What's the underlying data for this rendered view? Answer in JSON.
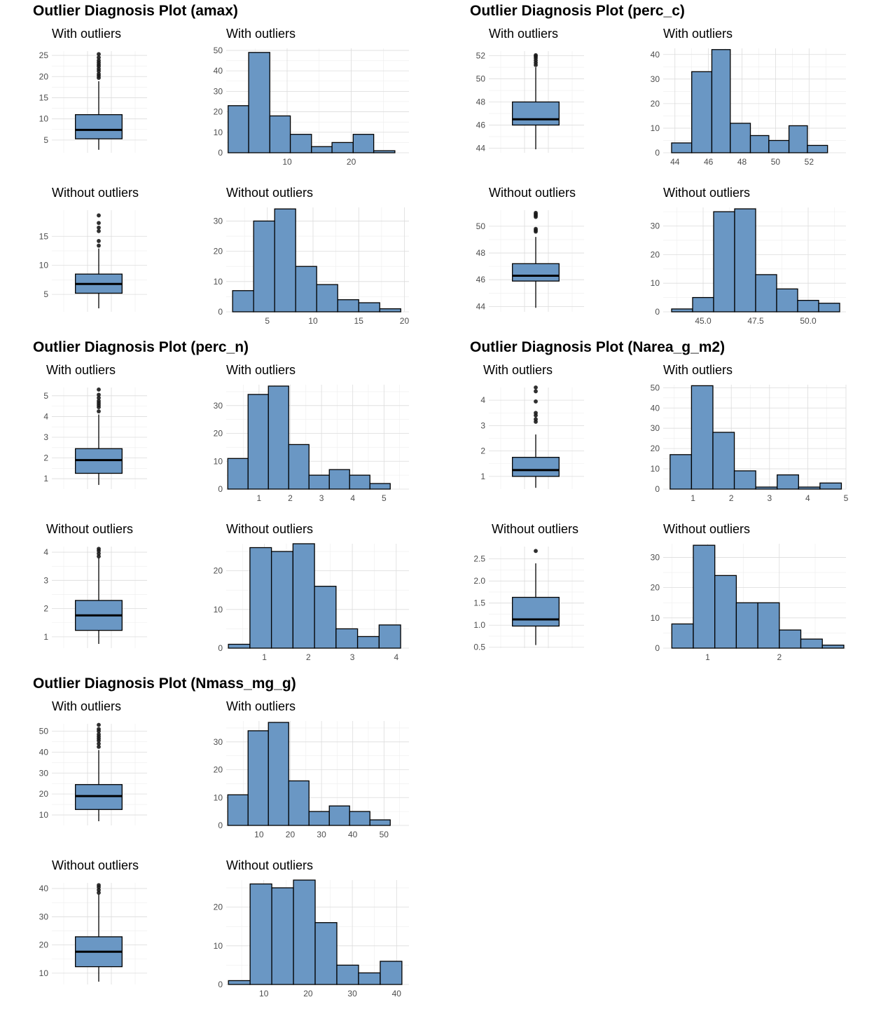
{
  "colors": {
    "fill": "#6a97c4",
    "outline": "#000000",
    "point": "#1a1a1a",
    "grid": "#dcdcdc"
  },
  "chart_data": [
    {
      "type": "composite",
      "title": "Outlier Diagnosis Plot (amax)",
      "panels": [
        {
          "kind": "box",
          "title": "With outliers",
          "ylim": [
            2,
            26
          ],
          "yticks": [
            5,
            10,
            15,
            20,
            25
          ],
          "stats": {
            "whisker_low": 2.7,
            "q1": 5.3,
            "median": 7.4,
            "q3": 11.0,
            "whisker_high": 18.9
          },
          "outliers": [
            19.7,
            20.2,
            20.6,
            21.3,
            21.8,
            22.4,
            22.8,
            23.3,
            23.8,
            24.5,
            25.3
          ]
        },
        {
          "kind": "hist",
          "title": "With outliers",
          "xlim": [
            0.5,
            29
          ],
          "ylim": [
            0,
            51
          ],
          "xticks": [
            10,
            20
          ],
          "yticks": [
            0,
            10,
            20,
            30,
            40,
            50
          ],
          "bins": [
            [
              0.8,
              4.0,
              23
            ],
            [
              4.0,
              7.3,
              49
            ],
            [
              7.3,
              10.5,
              18
            ],
            [
              10.5,
              13.8,
              9
            ],
            [
              13.8,
              17.0,
              3
            ],
            [
              17.0,
              20.3,
              5
            ],
            [
              20.3,
              23.5,
              9
            ],
            [
              23.5,
              26.8,
              1
            ]
          ]
        },
        {
          "kind": "box",
          "title": "Without outliers",
          "ylim": [
            2,
            19.5
          ],
          "yticks": [
            5,
            10,
            15
          ],
          "stats": {
            "whisker_low": 2.6,
            "q1": 5.2,
            "median": 6.8,
            "q3": 8.5,
            "whisker_high": 12.9
          },
          "outliers": [
            13.4,
            14.2,
            15.9,
            16.5,
            17.3,
            18.6
          ]
        },
        {
          "kind": "hist",
          "title": "Without outliers",
          "xlim": [
            0.5,
            20.5
          ],
          "ylim": [
            0,
            34.5
          ],
          "xticks": [
            5,
            10,
            15,
            20
          ],
          "yticks": [
            0,
            10,
            20,
            30
          ],
          "bins": [
            [
              1.2,
              3.5,
              7
            ],
            [
              3.5,
              5.8,
              30
            ],
            [
              5.8,
              8.1,
              34
            ],
            [
              8.1,
              10.4,
              15
            ],
            [
              10.4,
              12.7,
              9
            ],
            [
              12.7,
              15.0,
              4
            ],
            [
              15.0,
              17.3,
              3
            ],
            [
              17.3,
              19.6,
              1
            ]
          ]
        }
      ]
    },
    {
      "type": "composite",
      "title": "Outlier Diagnosis Plot (perc_c)",
      "panels": [
        {
          "kind": "box",
          "title": "With outliers",
          "ylim": [
            43.6,
            52.4
          ],
          "yticks": [
            44,
            46,
            48,
            50,
            52
          ],
          "stats": {
            "whisker_low": 43.9,
            "q1": 46.0,
            "median": 46.5,
            "q3": 48.0,
            "whisker_high": 51.0
          },
          "outliers": [
            51.2,
            51.4,
            51.6,
            51.8,
            51.95,
            52.05
          ]
        },
        {
          "kind": "hist",
          "title": "With outliers",
          "xlim": [
            43.3,
            54.2
          ],
          "ylim": [
            0,
            42.5
          ],
          "xticks": [
            44,
            46,
            48,
            50,
            52
          ],
          "yticks": [
            0,
            10,
            20,
            30,
            40
          ],
          "bins": [
            [
              43.8,
              45.0,
              4
            ],
            [
              45.0,
              46.2,
              33
            ],
            [
              46.2,
              47.3,
              42
            ],
            [
              47.3,
              48.5,
              12
            ],
            [
              48.5,
              49.6,
              7
            ],
            [
              49.6,
              50.8,
              5
            ],
            [
              50.8,
              51.9,
              11
            ],
            [
              51.9,
              53.1,
              3
            ]
          ]
        },
        {
          "kind": "box",
          "title": "Without outliers",
          "ylim": [
            43.6,
            51.2
          ],
          "yticks": [
            44,
            46,
            48,
            50
          ],
          "stats": {
            "whisker_low": 43.9,
            "q1": 45.9,
            "median": 46.3,
            "q3": 47.2,
            "whisker_high": 49.2
          },
          "outliers": [
            49.6,
            49.7,
            49.8,
            50.7,
            50.8,
            50.9,
            51.0
          ]
        },
        {
          "kind": "hist",
          "title": "Without outliers",
          "xlim": [
            43.1,
            51.8
          ],
          "ylim": [
            0,
            36.5
          ],
          "xticks": [
            45.0,
            47.5,
            50.0
          ],
          "yticks": [
            0,
            10,
            20,
            30
          ],
          "bins": [
            [
              43.5,
              44.5,
              1
            ],
            [
              44.5,
              45.5,
              5
            ],
            [
              45.5,
              46.5,
              35
            ],
            [
              46.5,
              47.5,
              36
            ],
            [
              47.5,
              48.5,
              13
            ],
            [
              48.5,
              49.5,
              8
            ],
            [
              49.5,
              50.5,
              4
            ],
            [
              50.5,
              51.5,
              3
            ]
          ]
        }
      ]
    },
    {
      "type": "composite",
      "title": "Outlier Diagnosis Plot (perc_n)",
      "panels": [
        {
          "kind": "box",
          "title": "With outliers",
          "ylim": [
            0.5,
            5.4
          ],
          "yticks": [
            1,
            2,
            3,
            4,
            5
          ],
          "stats": {
            "whisker_low": 0.7,
            "q1": 1.26,
            "median": 1.9,
            "q3": 2.45,
            "whisker_high": 4.1
          },
          "outliers": [
            4.25,
            4.45,
            4.55,
            4.65,
            4.75,
            4.9,
            5.05,
            5.3
          ]
        },
        {
          "kind": "hist",
          "title": "With outliers",
          "xlim": [
            -0.05,
            5.8
          ],
          "ylim": [
            0,
            37.5
          ],
          "xticks": [
            1,
            2,
            3,
            4,
            5
          ],
          "yticks": [
            0,
            10,
            20,
            30
          ],
          "bins": [
            [
              0.0,
              0.65,
              11
            ],
            [
              0.65,
              1.3,
              34
            ],
            [
              1.3,
              1.95,
              37
            ],
            [
              1.95,
              2.6,
              16
            ],
            [
              2.6,
              3.25,
              5
            ],
            [
              3.25,
              3.9,
              7
            ],
            [
              3.9,
              4.55,
              5
            ],
            [
              4.55,
              5.2,
              2
            ]
          ]
        },
        {
          "kind": "box",
          "title": "Without outliers",
          "ylim": [
            0.6,
            4.2
          ],
          "yticks": [
            1,
            2,
            3,
            4
          ],
          "stats": {
            "whisker_low": 0.75,
            "q1": 1.23,
            "median": 1.76,
            "q3": 2.29,
            "whisker_high": 3.8
          },
          "outliers": [
            3.85,
            3.95,
            4.05,
            4.12
          ]
        },
        {
          "kind": "hist",
          "title": "Without outliers",
          "xlim": [
            0.13,
            4.29
          ],
          "ylim": [
            0,
            27
          ],
          "xticks": [
            1,
            2,
            3,
            4
          ],
          "yticks": [
            0,
            10,
            20
          ],
          "bins": [
            [
              0.18,
              0.67,
              1
            ],
            [
              0.67,
              1.16,
              26
            ],
            [
              1.16,
              1.65,
              25
            ],
            [
              1.65,
              2.14,
              27
            ],
            [
              2.14,
              2.63,
              16
            ],
            [
              2.63,
              3.12,
              5
            ],
            [
              3.12,
              3.61,
              3
            ],
            [
              3.61,
              4.1,
              6
            ]
          ]
        }
      ]
    },
    {
      "type": "composite",
      "title": "Outlier Diagnosis Plot (Narea_g_m2)",
      "panels": [
        {
          "kind": "box",
          "title": "With outliers",
          "ylim": [
            0.5,
            4.5
          ],
          "yticks": [
            1,
            2,
            3,
            4
          ],
          "stats": {
            "whisker_low": 0.55,
            "q1": 1.0,
            "median": 1.25,
            "q3": 1.75,
            "whisker_high": 2.65
          },
          "outliers": [
            3.15,
            3.25,
            3.4,
            3.5,
            3.95,
            4.35,
            4.5
          ]
        },
        {
          "kind": "hist",
          "title": "With outliers",
          "xlim": [
            0.22,
            5.0
          ],
          "ylim": [
            0,
            51.5
          ],
          "xticks": [
            1,
            2,
            3,
            4,
            5
          ],
          "yticks": [
            0,
            10,
            20,
            30,
            40,
            50
          ],
          "bins": [
            [
              0.4,
              0.96,
              17
            ],
            [
              0.96,
              1.52,
              51
            ],
            [
              1.52,
              2.08,
              28
            ],
            [
              2.08,
              2.64,
              9
            ],
            [
              2.64,
              3.2,
              1
            ],
            [
              3.2,
              3.76,
              7
            ],
            [
              3.76,
              4.32,
              1
            ],
            [
              4.32,
              4.88,
              3
            ]
          ]
        },
        {
          "kind": "box",
          "title": "Without outliers",
          "ylim": [
            0.48,
            2.78
          ],
          "yticks": [
            0.5,
            1.0,
            1.5,
            2.0,
            2.5
          ],
          "stats": {
            "whisker_low": 0.55,
            "q1": 0.98,
            "median": 1.13,
            "q3": 1.63,
            "whisker_high": 2.4
          },
          "outliers": [
            2.68
          ]
        },
        {
          "kind": "hist",
          "title": "Without outliers",
          "xlim": [
            0.38,
            2.93
          ],
          "ylim": [
            0,
            34.5
          ],
          "xticks": [
            1,
            2
          ],
          "yticks": [
            0,
            10,
            20,
            30
          ],
          "bins": [
            [
              0.5,
              0.8,
              8
            ],
            [
              0.8,
              1.1,
              34
            ],
            [
              1.1,
              1.4,
              24
            ],
            [
              1.4,
              1.7,
              15
            ],
            [
              1.7,
              2.0,
              15
            ],
            [
              2.0,
              2.3,
              6
            ],
            [
              2.3,
              2.6,
              3
            ],
            [
              2.6,
              2.9,
              1
            ]
          ]
        }
      ]
    },
    {
      "type": "composite",
      "title": "Outlier Diagnosis Plot (Nmass_mg_g)",
      "panels": [
        {
          "kind": "box",
          "title": "With outliers",
          "ylim": [
            5,
            53.5
          ],
          "yticks": [
            10,
            20,
            30,
            40,
            50
          ],
          "stats": {
            "whisker_low": 7.0,
            "q1": 12.6,
            "median": 19.0,
            "q3": 24.5,
            "whisker_high": 41.0
          },
          "outliers": [
            42.5,
            44.0,
            45.5,
            46.5,
            47.5,
            48.5,
            50.0,
            51.0,
            53.0
          ]
        },
        {
          "kind": "hist",
          "title": "With outliers",
          "xlim": [
            -0.5,
            58
          ],
          "ylim": [
            0,
            37.5
          ],
          "xticks": [
            10,
            20,
            30,
            40,
            50
          ],
          "yticks": [
            0,
            10,
            20,
            30
          ],
          "bins": [
            [
              0.0,
              6.5,
              11
            ],
            [
              6.5,
              13.0,
              34
            ],
            [
              13.0,
              19.5,
              37
            ],
            [
              19.5,
              26.0,
              16
            ],
            [
              26.0,
              32.5,
              5
            ],
            [
              32.5,
              39.0,
              7
            ],
            [
              39.0,
              45.5,
              5
            ],
            [
              45.5,
              52.0,
              2
            ]
          ]
        },
        {
          "kind": "box",
          "title": "Without outliers",
          "ylim": [
            6,
            42
          ],
          "yticks": [
            10,
            20,
            30,
            40
          ],
          "stats": {
            "whisker_low": 7.0,
            "q1": 12.3,
            "median": 17.6,
            "q3": 22.9,
            "whisker_high": 38.0
          },
          "outliers": [
            38.5,
            39.5,
            40.5,
            41.2
          ]
        },
        {
          "kind": "hist",
          "title": "Without outliers",
          "xlim": [
            1.5,
            42.8
          ],
          "ylim": [
            0,
            27
          ],
          "xticks": [
            10,
            20,
            30,
            40
          ],
          "yticks": [
            0,
            10,
            20
          ],
          "bins": [
            [
              2.0,
              6.9,
              1
            ],
            [
              6.9,
              11.8,
              26
            ],
            [
              11.8,
              16.7,
              25
            ],
            [
              16.7,
              21.6,
              27
            ],
            [
              21.6,
              26.5,
              16
            ],
            [
              26.5,
              31.4,
              5
            ],
            [
              31.4,
              36.3,
              3
            ],
            [
              36.3,
              41.2,
              6
            ]
          ]
        }
      ]
    }
  ]
}
